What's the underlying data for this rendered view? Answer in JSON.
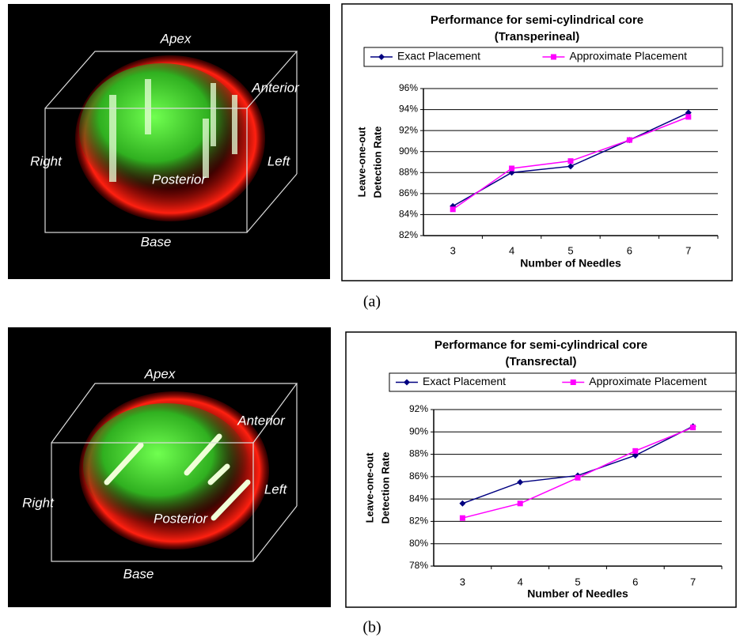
{
  "chart_data": [
    {
      "type": "line",
      "title": "Performance for semi-cylindrical core",
      "subtitle": "(Transperineal)",
      "x_label": "Number of Needles",
      "y_label": [
        "Leave-one-out",
        "Detection Rate"
      ],
      "categories": [
        "3",
        "4",
        "5",
        "6",
        "7"
      ],
      "series": [
        {
          "name": "Exact Placement",
          "color": "#000080",
          "marker": "diamond",
          "values": [
            84.8,
            88.0,
            88.6,
            91.1,
            93.7
          ]
        },
        {
          "name": "Approximate Placement",
          "color": "#ff00ff",
          "marker": "square",
          "values": [
            84.5,
            88.4,
            89.1,
            91.1,
            93.3
          ]
        }
      ],
      "ylim": [
        82,
        96
      ],
      "yticks": [
        {
          "value": 82,
          "label": "82%"
        },
        {
          "value": 84,
          "label": "84%"
        },
        {
          "value": 86,
          "label": "86%"
        },
        {
          "value": 88,
          "label": "88%"
        },
        {
          "value": 90,
          "label": "90%"
        },
        {
          "value": 92,
          "label": "92%"
        },
        {
          "value": 94,
          "label": "94%"
        },
        {
          "value": 96,
          "label": "96%"
        }
      ],
      "grid": true,
      "legend": "top"
    },
    {
      "type": "line",
      "title": "Performance for semi-cylindrical core",
      "subtitle": "(Transrectal)",
      "x_label": "Number of Needles",
      "y_label": [
        "Leave-one-out",
        "Detection Rate"
      ],
      "categories": [
        "3",
        "4",
        "5",
        "6",
        "7"
      ],
      "series": [
        {
          "name": "Exact Placement",
          "color": "#000080",
          "marker": "diamond",
          "values": [
            83.6,
            85.5,
            86.1,
            87.9,
            90.5
          ]
        },
        {
          "name": "Approximate Placement",
          "color": "#ff00ff",
          "marker": "square",
          "values": [
            82.3,
            83.6,
            85.9,
            88.3,
            90.4
          ]
        }
      ],
      "ylim": [
        78,
        92
      ],
      "yticks": [
        {
          "value": 78,
          "label": "78%"
        },
        {
          "value": 80,
          "label": "80%"
        },
        {
          "value": 82,
          "label": "82%"
        },
        {
          "value": 84,
          "label": "84%"
        },
        {
          "value": 86,
          "label": "86%"
        },
        {
          "value": 88,
          "label": "88%"
        },
        {
          "value": 90,
          "label": "90%"
        },
        {
          "value": 92,
          "label": "92%"
        }
      ],
      "grid": true,
      "legend": "top"
    }
  ],
  "panels": [
    {
      "labels": [
        "Apex",
        "Anterior",
        "Right",
        "Left",
        "Posterior",
        "Base"
      ],
      "caption": "(a)"
    },
    {
      "labels": [
        "Apex",
        "Anterior",
        "Right",
        "Left",
        "Posterior",
        "Base"
      ],
      "caption": "(b)"
    }
  ]
}
